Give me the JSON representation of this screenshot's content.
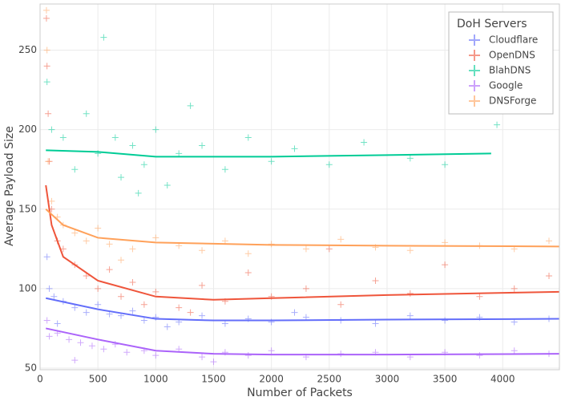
{
  "chart_data": {
    "type": "scatter",
    "x_label": "Number of Packets",
    "y_label": "Average Payload Size",
    "legend_title": "DoH Servers",
    "legend_position": "top-right",
    "grid": true,
    "xlim": [
      0,
      4490
    ],
    "ylim": [
      49,
      279
    ],
    "xticks": [
      0,
      500,
      1000,
      1500,
      2000,
      2500,
      3000,
      3500,
      4000
    ],
    "yticks": [
      50,
      100,
      150,
      200,
      250
    ],
    "series": [
      {
        "name": "Cloudflare",
        "color": "#636efa",
        "x": [
          60,
          80,
          120,
          200,
          300,
          400,
          500,
          600,
          700,
          800,
          900,
          1000,
          1200,
          1400,
          1600,
          1800,
          2000,
          2300,
          2600,
          2900,
          3200,
          3500,
          3800,
          4100,
          4400,
          150,
          1100,
          2200
        ],
        "values": [
          120,
          100,
          95,
          92,
          88,
          85,
          90,
          84,
          83,
          86,
          80,
          82,
          79,
          83,
          78,
          81,
          79,
          82,
          80,
          78,
          83,
          80,
          82,
          79,
          81,
          78,
          76,
          85
        ],
        "trend": {
          "x": [
            50,
            500,
            1000,
            1500,
            2000,
            3000,
            4490
          ],
          "values": [
            94,
            87,
            81,
            80,
            80,
            80.5,
            81
          ]
        }
      },
      {
        "name": "OpenDNS",
        "color": "#ef553b",
        "x": [
          55,
          60,
          70,
          80,
          100,
          150,
          200,
          300,
          400,
          500,
          600,
          700,
          800,
          900,
          1000,
          1200,
          1400,
          1600,
          1800,
          2000,
          2300,
          2600,
          2900,
          3200,
          3500,
          3800,
          4100,
          4400,
          2500,
          1300
        ],
        "values": [
          270,
          240,
          210,
          180,
          150,
          130,
          125,
          115,
          108,
          100,
          112,
          95,
          104,
          90,
          98,
          88,
          102,
          92,
          110,
          95,
          100,
          90,
          105,
          97,
          115,
          95,
          100,
          108,
          125,
          85
        ],
        "trend": {
          "x": [
            50,
            100,
            200,
            500,
            1000,
            1500,
            2000,
            3000,
            4490
          ],
          "values": [
            165,
            140,
            120,
            105,
            95,
            93,
            94,
            96,
            98
          ]
        }
      },
      {
        "name": "BlahDNS",
        "color": "#00cc96",
        "x": [
          60,
          100,
          200,
          300,
          400,
          500,
          550,
          650,
          700,
          800,
          900,
          1000,
          1100,
          1200,
          1400,
          1600,
          1800,
          2000,
          2200,
          2500,
          2800,
          3200,
          3500,
          3950,
          1300,
          850
        ],
        "values": [
          230,
          200,
          195,
          175,
          210,
          185,
          258,
          195,
          170,
          190,
          178,
          200,
          165,
          185,
          190,
          175,
          195,
          180,
          188,
          178,
          192,
          182,
          178,
          203,
          215,
          160
        ],
        "trend": {
          "x": [
            50,
            500,
            1000,
            2000,
            3000,
            3900
          ],
          "values": [
            187,
            186,
            183,
            183,
            184,
            185
          ]
        }
      },
      {
        "name": "Google",
        "color": "#ab63fa",
        "x": [
          60,
          80,
          150,
          250,
          350,
          450,
          550,
          650,
          750,
          900,
          1000,
          1200,
          1400,
          1600,
          1800,
          2000,
          2300,
          2600,
          2900,
          3200,
          3500,
          3800,
          4100,
          4400,
          300,
          1500
        ],
        "values": [
          80,
          70,
          72,
          68,
          66,
          64,
          62,
          65,
          60,
          61,
          58,
          62,
          57,
          60,
          58,
          61,
          57,
          59,
          60,
          57,
          60,
          58,
          61,
          59,
          55,
          54
        ],
        "trend": {
          "x": [
            50,
            500,
            1000,
            1500,
            2000,
            3000,
            4490
          ],
          "values": [
            75,
            68,
            61,
            59,
            58.5,
            58.5,
            59
          ]
        }
      },
      {
        "name": "DNSForge",
        "color": "#ffa15a",
        "x": [
          55,
          60,
          70,
          100,
          150,
          200,
          300,
          400,
          500,
          600,
          800,
          1000,
          1200,
          1400,
          1600,
          1800,
          2000,
          2300,
          2600,
          2900,
          3200,
          3500,
          3800,
          4100,
          4400,
          700
        ],
        "values": [
          275,
          250,
          180,
          155,
          145,
          140,
          135,
          130,
          138,
          128,
          125,
          132,
          127,
          124,
          130,
          122,
          128,
          125,
          131,
          126,
          124,
          129,
          127,
          125,
          130,
          118
        ],
        "trend": {
          "x": [
            50,
            200,
            500,
            1000,
            2000,
            3000,
            4490
          ],
          "values": [
            150,
            140,
            132,
            129,
            127.5,
            127,
            126.5
          ]
        }
      }
    ]
  }
}
